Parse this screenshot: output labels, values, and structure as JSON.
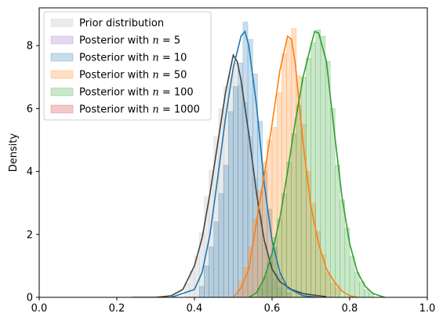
{
  "chart_data": {
    "type": "histogram-kde",
    "title": "",
    "xlabel": "",
    "ylabel": "Density",
    "xlim": [
      0,
      1
    ],
    "ylim": [
      0,
      9.2
    ],
    "x_ticks": [
      0.0,
      0.2,
      0.4,
      0.6,
      0.8,
      1.0
    ],
    "x_tick_labels": [
      "0.0",
      "0.2",
      "0.4",
      "0.6",
      "0.8",
      "1.0"
    ],
    "y_ticks": [
      0,
      2,
      4,
      6,
      8
    ],
    "y_tick_labels": [
      "0",
      "2",
      "4",
      "6",
      "8"
    ],
    "grid": false,
    "legend_position": "top-left",
    "series": [
      {
        "name": "Prior distribution",
        "color": "#c7c7c7",
        "line_color": "#444444",
        "bin_width": 0.0125,
        "bins": [
          [
            0.375,
            0.45
          ],
          [
            0.3875,
            0.85
          ],
          [
            0.4,
            1.3
          ],
          [
            0.4125,
            2.05
          ],
          [
            0.425,
            3.2
          ],
          [
            0.4375,
            4.05
          ],
          [
            0.45,
            5.1
          ],
          [
            0.4625,
            6.0
          ],
          [
            0.475,
            6.7
          ],
          [
            0.4875,
            7.05
          ],
          [
            0.5,
            7.45
          ],
          [
            0.5125,
            6.75
          ],
          [
            0.525,
            6.2
          ],
          [
            0.5375,
            5.1
          ],
          [
            0.55,
            3.8
          ],
          [
            0.5625,
            2.6
          ],
          [
            0.575,
            1.7
          ],
          [
            0.5875,
            1.1
          ],
          [
            0.6,
            0.6
          ],
          [
            0.6125,
            0.3
          ]
        ],
        "kde": [
          [
            0.24,
            0.0
          ],
          [
            0.3,
            0.0
          ],
          [
            0.34,
            0.05
          ],
          [
            0.37,
            0.25
          ],
          [
            0.4,
            1.0
          ],
          [
            0.42,
            1.9
          ],
          [
            0.44,
            3.3
          ],
          [
            0.46,
            4.9
          ],
          [
            0.48,
            6.5
          ],
          [
            0.5,
            7.7
          ],
          [
            0.51,
            7.5
          ],
          [
            0.52,
            6.9
          ],
          [
            0.54,
            5.2
          ],
          [
            0.56,
            3.3
          ],
          [
            0.58,
            1.8
          ],
          [
            0.6,
            0.9
          ],
          [
            0.62,
            0.5
          ],
          [
            0.65,
            0.25
          ],
          [
            0.68,
            0.12
          ],
          [
            0.72,
            0.05
          ],
          [
            0.74,
            0.02
          ]
        ]
      },
      {
        "name": "Posterior with $n = 5$",
        "color": "#9467bd",
        "bins": [],
        "kde": []
      },
      {
        "name": "Posterior with $n = 10$",
        "color": "#1f77b4",
        "bin_width": 0.0125,
        "bins": [
          [
            0.4125,
            0.35
          ],
          [
            0.425,
            1.0
          ],
          [
            0.4375,
            1.6
          ],
          [
            0.45,
            2.4
          ],
          [
            0.4625,
            3.3
          ],
          [
            0.475,
            4.2
          ],
          [
            0.4875,
            5.9
          ],
          [
            0.5,
            6.7
          ],
          [
            0.5125,
            7.45
          ],
          [
            0.525,
            8.75
          ],
          [
            0.5375,
            8.2
          ],
          [
            0.55,
            7.1
          ],
          [
            0.5625,
            5.6
          ],
          [
            0.575,
            4.0
          ],
          [
            0.5875,
            2.8
          ],
          [
            0.6,
            1.6
          ],
          [
            0.6125,
            0.75
          ],
          [
            0.625,
            0.35
          ],
          [
            0.6375,
            0.15
          ]
        ],
        "kde": [
          [
            0.34,
            0.0
          ],
          [
            0.4,
            0.25
          ],
          [
            0.42,
            0.8
          ],
          [
            0.44,
            2.0
          ],
          [
            0.46,
            3.8
          ],
          [
            0.48,
            5.7
          ],
          [
            0.5,
            7.3
          ],
          [
            0.52,
            8.3
          ],
          [
            0.53,
            8.45
          ],
          [
            0.54,
            8.0
          ],
          [
            0.56,
            6.1
          ],
          [
            0.58,
            3.6
          ],
          [
            0.6,
            1.8
          ],
          [
            0.62,
            0.8
          ],
          [
            0.64,
            0.3
          ],
          [
            0.68,
            0.05
          ],
          [
            0.72,
            0.0
          ]
        ]
      },
      {
        "name": "Posterior with $n = 50$",
        "color": "#ff7f0e",
        "bin_width": 0.0125,
        "bins": [
          [
            0.5125,
            0.5
          ],
          [
            0.525,
            0.95
          ],
          [
            0.5375,
            1.6
          ],
          [
            0.55,
            2.5
          ],
          [
            0.5625,
            3.4
          ],
          [
            0.575,
            4.3
          ],
          [
            0.5875,
            5.0
          ],
          [
            0.6,
            5.4
          ],
          [
            0.6125,
            6.5
          ],
          [
            0.625,
            7.75
          ],
          [
            0.6375,
            8.2
          ],
          [
            0.65,
            8.55
          ],
          [
            0.6625,
            7.05
          ],
          [
            0.675,
            5.5
          ],
          [
            0.6875,
            4.0
          ],
          [
            0.7,
            3.0
          ],
          [
            0.7125,
            2.1
          ],
          [
            0.725,
            1.35
          ],
          [
            0.7375,
            0.8
          ],
          [
            0.75,
            0.45
          ],
          [
            0.7625,
            0.3
          ]
        ],
        "kde": [
          [
            0.5,
            0.0
          ],
          [
            0.52,
            0.3
          ],
          [
            0.54,
            0.9
          ],
          [
            0.56,
            2.4
          ],
          [
            0.58,
            3.9
          ],
          [
            0.6,
            5.5
          ],
          [
            0.62,
            7.2
          ],
          [
            0.64,
            8.3
          ],
          [
            0.65,
            8.2
          ],
          [
            0.66,
            7.4
          ],
          [
            0.68,
            4.9
          ],
          [
            0.7,
            2.9
          ],
          [
            0.72,
            1.7
          ],
          [
            0.74,
            0.9
          ],
          [
            0.76,
            0.5
          ],
          [
            0.78,
            0.2
          ],
          [
            0.8,
            0.05
          ],
          [
            0.82,
            0.0
          ]
        ]
      },
      {
        "name": "Posterior with $n = 100$",
        "color": "#2ca02c",
        "line_color": "#2ca02c",
        "bin_width": 0.0125,
        "bins": [
          [
            0.5625,
            0.3
          ],
          [
            0.575,
            0.65
          ],
          [
            0.5875,
            1.2
          ],
          [
            0.6,
            1.9
          ],
          [
            0.6125,
            2.5
          ],
          [
            0.625,
            3.3
          ],
          [
            0.6375,
            4.3
          ],
          [
            0.65,
            5.2
          ],
          [
            0.6625,
            6.1
          ],
          [
            0.675,
            7.0
          ],
          [
            0.6875,
            7.6
          ],
          [
            0.7,
            8.1
          ],
          [
            0.7125,
            8.5
          ],
          [
            0.725,
            8.3
          ],
          [
            0.7375,
            7.5
          ],
          [
            0.75,
            6.0
          ],
          [
            0.7625,
            4.2
          ],
          [
            0.775,
            3.1
          ],
          [
            0.7875,
            2.2
          ],
          [
            0.8,
            1.3
          ],
          [
            0.8125,
            0.8
          ],
          [
            0.825,
            0.5
          ],
          [
            0.8375,
            0.25
          ],
          [
            0.85,
            0.15
          ]
        ],
        "kde": [
          [
            0.54,
            0.0
          ],
          [
            0.56,
            0.15
          ],
          [
            0.58,
            0.6
          ],
          [
            0.6,
            1.4
          ],
          [
            0.62,
            2.5
          ],
          [
            0.64,
            4.0
          ],
          [
            0.66,
            5.6
          ],
          [
            0.68,
            7.0
          ],
          [
            0.7,
            8.0
          ],
          [
            0.71,
            8.45
          ],
          [
            0.72,
            8.4
          ],
          [
            0.74,
            7.5
          ],
          [
            0.76,
            5.3
          ],
          [
            0.78,
            3.2
          ],
          [
            0.8,
            1.7
          ],
          [
            0.82,
            0.8
          ],
          [
            0.84,
            0.35
          ],
          [
            0.86,
            0.12
          ],
          [
            0.89,
            0.0
          ]
        ]
      },
      {
        "name": "Posterior with $n = 1000$",
        "color": "#d62728",
        "bins": [],
        "kde": []
      }
    ]
  },
  "legend": {
    "items": [
      {
        "prefix": "Prior distribution",
        "n": ""
      },
      {
        "prefix": "Posterior with ",
        "n": "5"
      },
      {
        "prefix": "Posterior with ",
        "n": "10"
      },
      {
        "prefix": "Posterior with ",
        "n": "50"
      },
      {
        "prefix": "Posterior with ",
        "n": "100"
      },
      {
        "prefix": "Posterior with ",
        "n": "1000"
      }
    ],
    "n_symbol": "n",
    "equals": " = "
  }
}
